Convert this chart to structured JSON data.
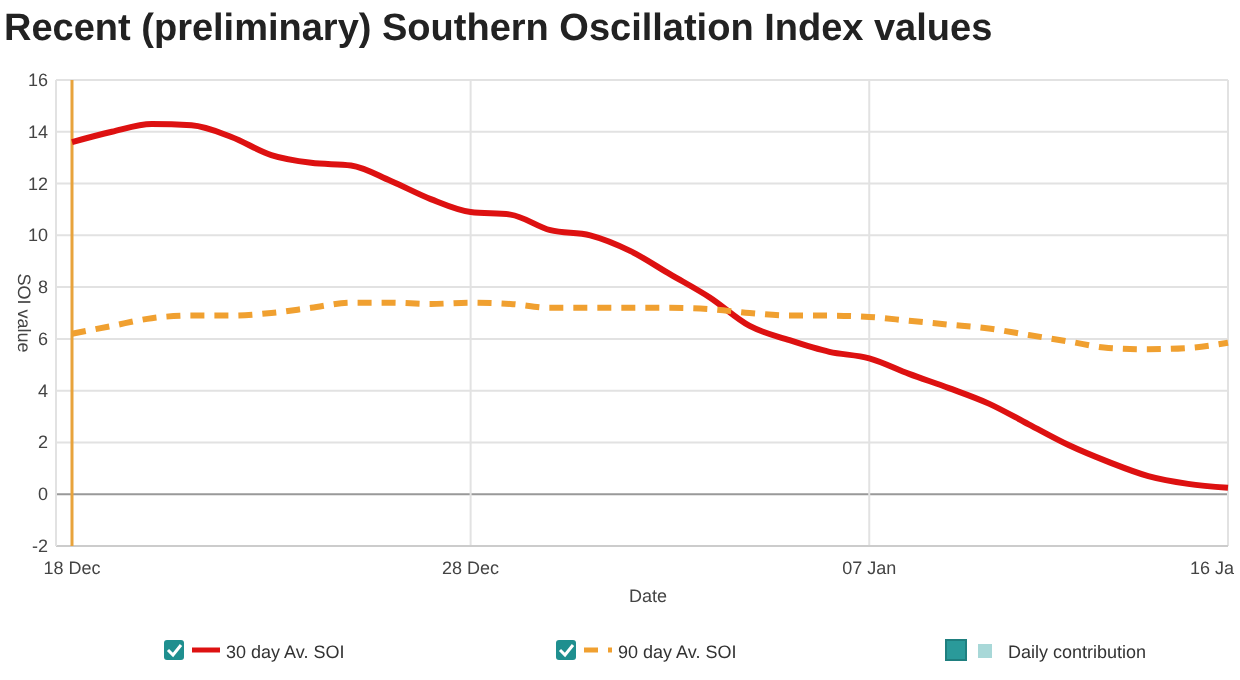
{
  "chart_data": {
    "type": "line",
    "title": "Recent (preliminary) Southern Oscillation Index values",
    "xlabel": "Date",
    "ylabel": "SOI value",
    "categories": [
      "18 Dec",
      null,
      null,
      null,
      null,
      null,
      null,
      null,
      null,
      null,
      "28 Dec",
      null,
      null,
      null,
      null,
      null,
      null,
      null,
      null,
      null,
      "07 Jan",
      null,
      null,
      null,
      null,
      null,
      null,
      null,
      null,
      "16 Ja"
    ],
    "ylim": [
      -2,
      16
    ],
    "yticks": [
      -2,
      0,
      2,
      4,
      6,
      8,
      10,
      12,
      14,
      16
    ],
    "grid": true,
    "legend": "bottom",
    "marker": "none",
    "ref_lines": [
      {
        "axis": "x",
        "value": "18 Dec",
        "color": "#e8a33c"
      }
    ],
    "series": [
      {
        "name": "30 day Av. SOI",
        "color": "#dd1111",
        "line_style": "solid",
        "values": [
          13.6,
          14.0,
          14.3,
          14.25,
          13.8,
          13.1,
          12.8,
          12.7,
          12.1,
          11.4,
          10.9,
          10.8,
          10.2,
          10.0,
          9.4,
          8.5,
          7.6,
          6.5,
          5.95,
          5.5,
          5.25,
          4.65,
          4.1,
          3.5,
          2.7,
          1.9,
          1.25,
          0.7,
          0.4,
          0.25
        ]
      },
      {
        "name": "90 day Av. SOI",
        "color": "#f0a030",
        "line_style": "dashed",
        "values": [
          6.2,
          6.5,
          6.8,
          6.9,
          6.9,
          7.0,
          7.2,
          7.4,
          7.4,
          7.35,
          7.4,
          7.35,
          7.2,
          7.2,
          7.2,
          7.2,
          7.15,
          7.0,
          6.9,
          6.9,
          6.85,
          6.7,
          6.55,
          6.4,
          6.15,
          5.9,
          5.65,
          5.6,
          5.65,
          5.85
        ]
      },
      {
        "name": "Daily contribution",
        "type": "bar",
        "color": "#a8d8d8",
        "values": [
          null,
          null,
          null,
          null,
          null,
          null,
          null,
          null,
          null,
          null,
          null,
          null,
          null,
          null,
          null,
          null,
          null,
          null,
          null,
          null,
          null,
          null,
          null,
          null,
          null,
          null,
          null,
          null,
          null,
          null
        ]
      }
    ]
  }
}
